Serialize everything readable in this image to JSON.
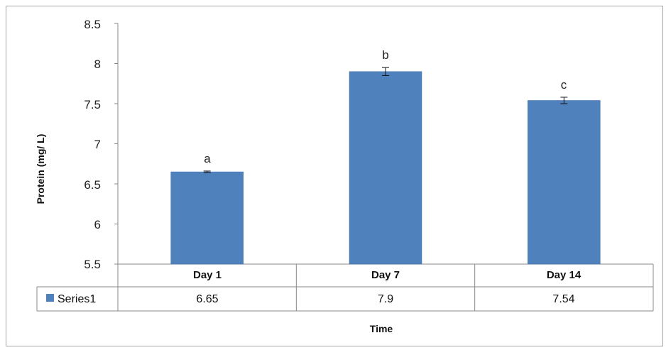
{
  "chart_data": {
    "type": "bar",
    "title": "",
    "xlabel": "Time",
    "ylabel": "Protein (mg/ L)",
    "ylim": [
      5.5,
      8.5
    ],
    "yticks": [
      "8.5",
      "8",
      "7.5",
      "7",
      "6.5",
      "6",
      "5.5"
    ],
    "ytick_values": [
      8.5,
      8,
      7.5,
      7,
      6.5,
      6,
      5.5
    ],
    "categories": [
      "Day 1",
      "Day 7",
      "Day 14"
    ],
    "series": [
      {
        "name": "Series1",
        "values": [
          6.65,
          7.9,
          7.54
        ],
        "value_labels": [
          "6.65",
          "7.9",
          "7.54"
        ],
        "errors": [
          0.01,
          0.05,
          0.04
        ],
        "annotations": [
          "a",
          "b",
          "c"
        ],
        "color": "#4f81bd"
      }
    ],
    "grid": false,
    "legend": "data-table"
  }
}
